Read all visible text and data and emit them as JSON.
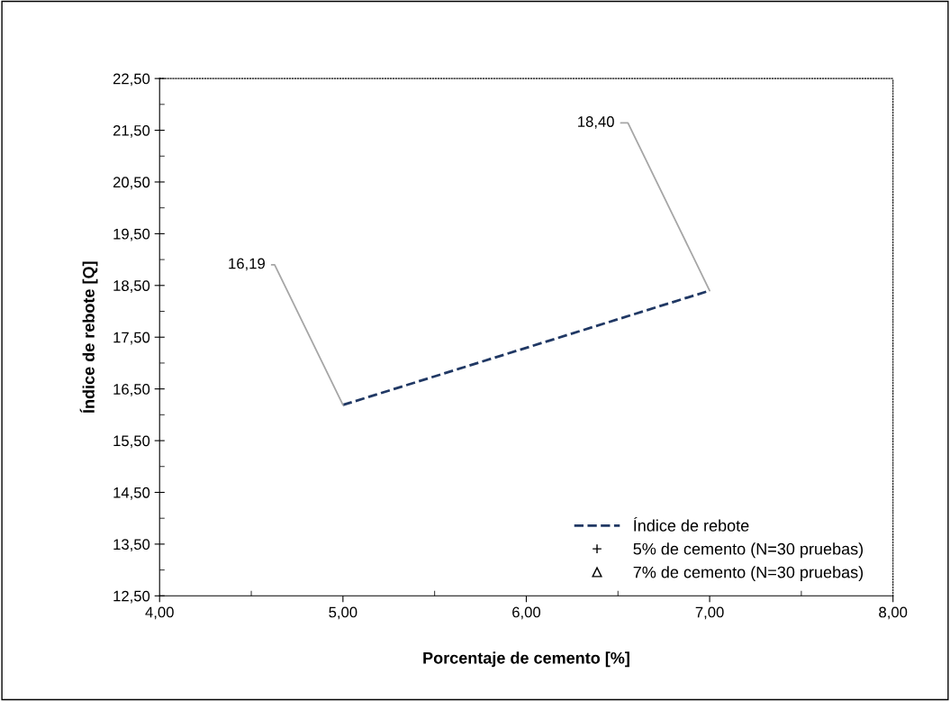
{
  "chart_data": {
    "type": "line",
    "xlabel": "Porcentaje de cemento [%]",
    "ylabel": "Índice de rebote [Q]",
    "xlim": [
      4,
      8
    ],
    "ylim": [
      12.5,
      22.5
    ],
    "xticks": [
      {
        "value": 4,
        "label": "4,00"
      },
      {
        "value": 5,
        "label": "5,00"
      },
      {
        "value": 6,
        "label": "6,00"
      },
      {
        "value": 7,
        "label": "7,00"
      },
      {
        "value": 8,
        "label": "8,00"
      }
    ],
    "yticks": [
      {
        "value": 12.5,
        "label": "12,50"
      },
      {
        "value": 13.5,
        "label": "13,50"
      },
      {
        "value": 14.5,
        "label": "14,50"
      },
      {
        "value": 15.5,
        "label": "15,50"
      },
      {
        "value": 16.5,
        "label": "16,50"
      },
      {
        "value": 17.5,
        "label": "17,50"
      },
      {
        "value": 18.5,
        "label": "18,50"
      },
      {
        "value": 19.5,
        "label": "19,50"
      },
      {
        "value": 20.5,
        "label": "20,50"
      },
      {
        "value": 21.5,
        "label": "21,50"
      },
      {
        "value": 22.5,
        "label": "22,50"
      }
    ],
    "grid": false,
    "legend": "bottom right",
    "annotations": [
      {
        "text": "16,19",
        "x": 5,
        "y": 16.19
      },
      {
        "text": "18,40",
        "x": 7,
        "y": 18.4
      }
    ],
    "series": [
      {
        "name": "Índice de rebote",
        "color": "#203864",
        "line_style": "dashed",
        "marker": "none",
        "x": [
          5,
          7
        ],
        "values": [
          16.19,
          18.4
        ]
      },
      {
        "name": "5% de cemento (N=30 pruebas)",
        "type": "scatter",
        "color": "#000000",
        "marker": "cross"
      },
      {
        "name": "7% de cemento (N=30 pruebas)",
        "type": "scatter",
        "color": "#000000",
        "marker": "triangle"
      }
    ]
  }
}
